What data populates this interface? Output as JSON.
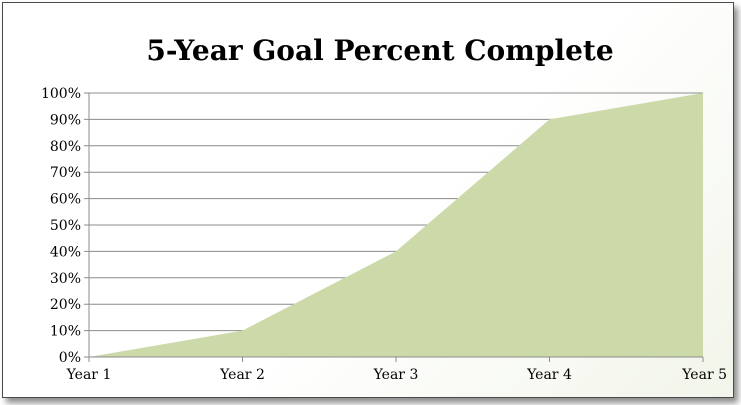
{
  "chart_data": {
    "type": "area",
    "title": "5-Year Goal Percent Complete",
    "categories": [
      "Year 1",
      "Year 2",
      "Year 3",
      "Year 4",
      "Year 5"
    ],
    "series": [
      {
        "values": [
          0,
          10,
          40,
          90,
          100
        ]
      }
    ],
    "ylim": [
      0,
      100
    ],
    "yticks": [
      0,
      10,
      20,
      30,
      40,
      50,
      60,
      70,
      80,
      90,
      100
    ],
    "ytick_labels": [
      "0%",
      "10%",
      "20%",
      "30%",
      "40%",
      "50%",
      "60%",
      "70%",
      "80%",
      "90%",
      "100%"
    ],
    "xlabel": "",
    "ylabel": "",
    "grid": true,
    "legend": "none",
    "colors": {
      "area_fill": "#ccd9a9",
      "grid": "#8c8c8c"
    }
  }
}
